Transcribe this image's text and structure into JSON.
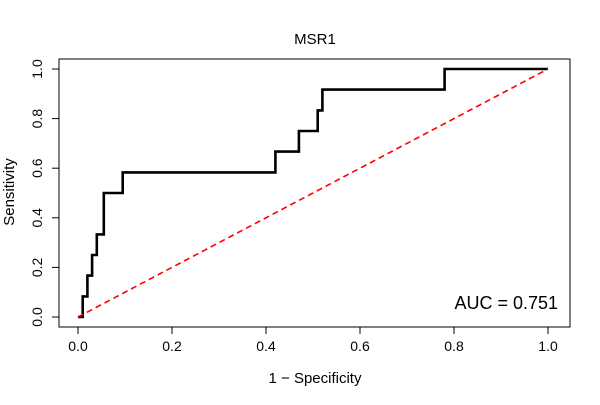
{
  "chart_data": {
    "type": "line",
    "title": "MSR1",
    "xlabel": "1 − Specificity",
    "ylabel": "Sensitivity",
    "xlim": [
      0,
      1
    ],
    "ylim": [
      0,
      1
    ],
    "xticks": [
      {
        "value": 0.0,
        "label": "0.0"
      },
      {
        "value": 0.2,
        "label": "0.2"
      },
      {
        "value": 0.4,
        "label": "0.4"
      },
      {
        "value": 0.6,
        "label": "0.6"
      },
      {
        "value": 0.8,
        "label": "0.8"
      },
      {
        "value": 1.0,
        "label": "1.0"
      }
    ],
    "yticks": [
      {
        "value": 0.0,
        "label": "0.0"
      },
      {
        "value": 0.2,
        "label": "0.2"
      },
      {
        "value": 0.4,
        "label": "0.4"
      },
      {
        "value": 0.6,
        "label": "0.6"
      },
      {
        "value": 0.8,
        "label": "0.8"
      },
      {
        "value": 1.0,
        "label": "1.0"
      }
    ],
    "grid": false,
    "annotation": "AUC = 0.751",
    "annotation_placement": "bottom-right",
    "series": [
      {
        "name": "ROC curve",
        "color": "#000000",
        "style": "solid",
        "points": [
          [
            0.0,
            0.0
          ],
          [
            0.01,
            0.0
          ],
          [
            0.01,
            0.083
          ],
          [
            0.02,
            0.083
          ],
          [
            0.02,
            0.167
          ],
          [
            0.03,
            0.167
          ],
          [
            0.03,
            0.25
          ],
          [
            0.04,
            0.25
          ],
          [
            0.04,
            0.333
          ],
          [
            0.055,
            0.333
          ],
          [
            0.055,
            0.5
          ],
          [
            0.095,
            0.5
          ],
          [
            0.095,
            0.583
          ],
          [
            0.42,
            0.583
          ],
          [
            0.42,
            0.667
          ],
          [
            0.47,
            0.667
          ],
          [
            0.47,
            0.75
          ],
          [
            0.51,
            0.75
          ],
          [
            0.51,
            0.833
          ],
          [
            0.52,
            0.833
          ],
          [
            0.52,
            0.917
          ],
          [
            0.78,
            0.917
          ],
          [
            0.78,
            1.0
          ],
          [
            1.0,
            1.0
          ]
        ]
      },
      {
        "name": "Reference diagonal",
        "color": "#ff0000",
        "style": "dashed",
        "points": [
          [
            0.0,
            0.0
          ],
          [
            1.0,
            1.0
          ]
        ]
      }
    ]
  }
}
